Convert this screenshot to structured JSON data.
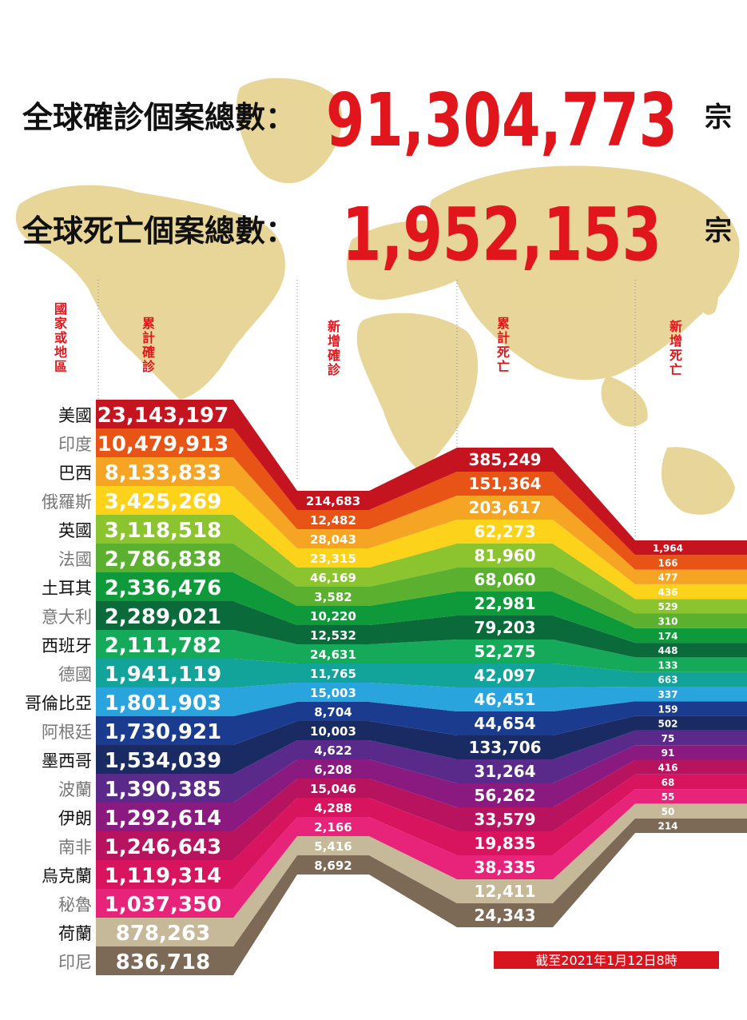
{
  "header": {
    "confirmed_label": "全球確診個案總數：",
    "confirmed_value": "91,304,773",
    "deaths_label": "全球死亡個案總數：",
    "deaths_value": "1,952,153",
    "unit": "宗"
  },
  "footer": {
    "as_of": "截至2021年1月12日8時"
  },
  "colors": {
    "accent_red": "#e1151c",
    "map": "#e0c877",
    "row_colors": [
      "#c4141f",
      "#e85316",
      "#f5a424",
      "#fcd31a",
      "#8cc430",
      "#5bb030",
      "#0e9a3a",
      "#0a6a3a",
      "#15a95a",
      "#12a39a",
      "#2aa4dc",
      "#1b3c8e",
      "#1a2a62",
      "#5a2a8a",
      "#8a1a80",
      "#b8135e",
      "#d8145e",
      "#e8247a",
      "#c5b99a",
      "#7c6a56"
    ]
  },
  "chart_data": {
    "type": "table",
    "columns": [
      "國家或地區",
      "累計確診",
      "新增確診",
      "累計死亡",
      "新增死亡"
    ],
    "rows": [
      {
        "country": "美國",
        "cum_cases": "23,143,197",
        "new_cases": "214,683",
        "cum_deaths": "385,249",
        "new_deaths": "1,964"
      },
      {
        "country": "印度",
        "cum_cases": "10,479,913",
        "new_cases": "12,482",
        "cum_deaths": "151,364",
        "new_deaths": "166"
      },
      {
        "country": "巴西",
        "cum_cases": "8,133,833",
        "new_cases": "28,043",
        "cum_deaths": "203,617",
        "new_deaths": "477"
      },
      {
        "country": "俄羅斯",
        "cum_cases": "3,425,269",
        "new_cases": "23,315",
        "cum_deaths": "62,273",
        "new_deaths": "436"
      },
      {
        "country": "英國",
        "cum_cases": "3,118,518",
        "new_cases": "46,169",
        "cum_deaths": "81,960",
        "new_deaths": "529"
      },
      {
        "country": "法國",
        "cum_cases": "2,786,838",
        "new_cases": "3,582",
        "cum_deaths": "68,060",
        "new_deaths": "310"
      },
      {
        "country": "土耳其",
        "cum_cases": "2,336,476",
        "new_cases": "10,220",
        "cum_deaths": "22,981",
        "new_deaths": "174"
      },
      {
        "country": "意大利",
        "cum_cases": "2,289,021",
        "new_cases": "12,532",
        "cum_deaths": "79,203",
        "new_deaths": "448"
      },
      {
        "country": "西班牙",
        "cum_cases": "2,111,782",
        "new_cases": "24,631",
        "cum_deaths": "52,275",
        "new_deaths": "133"
      },
      {
        "country": "德國",
        "cum_cases": "1,941,119",
        "new_cases": "11,765",
        "cum_deaths": "42,097",
        "new_deaths": "663"
      },
      {
        "country": "哥倫比亞",
        "cum_cases": "1,801,903",
        "new_cases": "15,003",
        "cum_deaths": "46,451",
        "new_deaths": "337"
      },
      {
        "country": "阿根廷",
        "cum_cases": "1,730,921",
        "new_cases": "8,704",
        "cum_deaths": "44,654",
        "new_deaths": "159"
      },
      {
        "country": "墨西哥",
        "cum_cases": "1,534,039",
        "new_cases": "10,003",
        "cum_deaths": "133,706",
        "new_deaths": "502"
      },
      {
        "country": "波蘭",
        "cum_cases": "1,390,385",
        "new_cases": "4,622",
        "cum_deaths": "31,264",
        "new_deaths": "75"
      },
      {
        "country": "伊朗",
        "cum_cases": "1,292,614",
        "new_cases": "6,208",
        "cum_deaths": "56,262",
        "new_deaths": "91"
      },
      {
        "country": "南非",
        "cum_cases": "1,246,643",
        "new_cases": "15,046",
        "cum_deaths": "33,579",
        "new_deaths": "416"
      },
      {
        "country": "烏克蘭",
        "cum_cases": "1,119,314",
        "new_cases": "4,288",
        "cum_deaths": "19,835",
        "new_deaths": "68"
      },
      {
        "country": "秘魯",
        "cum_cases": "1,037,350",
        "new_cases": "2,166",
        "cum_deaths": "38,335",
        "new_deaths": "55"
      },
      {
        "country": "荷蘭",
        "cum_cases": "878,263",
        "new_cases": "5,416",
        "cum_deaths": "12,411",
        "new_deaths": "50"
      },
      {
        "country": "印尼",
        "cum_cases": "836,718",
        "new_cases": "8,692",
        "cum_deaths": "24,343",
        "new_deaths": "214"
      }
    ]
  }
}
